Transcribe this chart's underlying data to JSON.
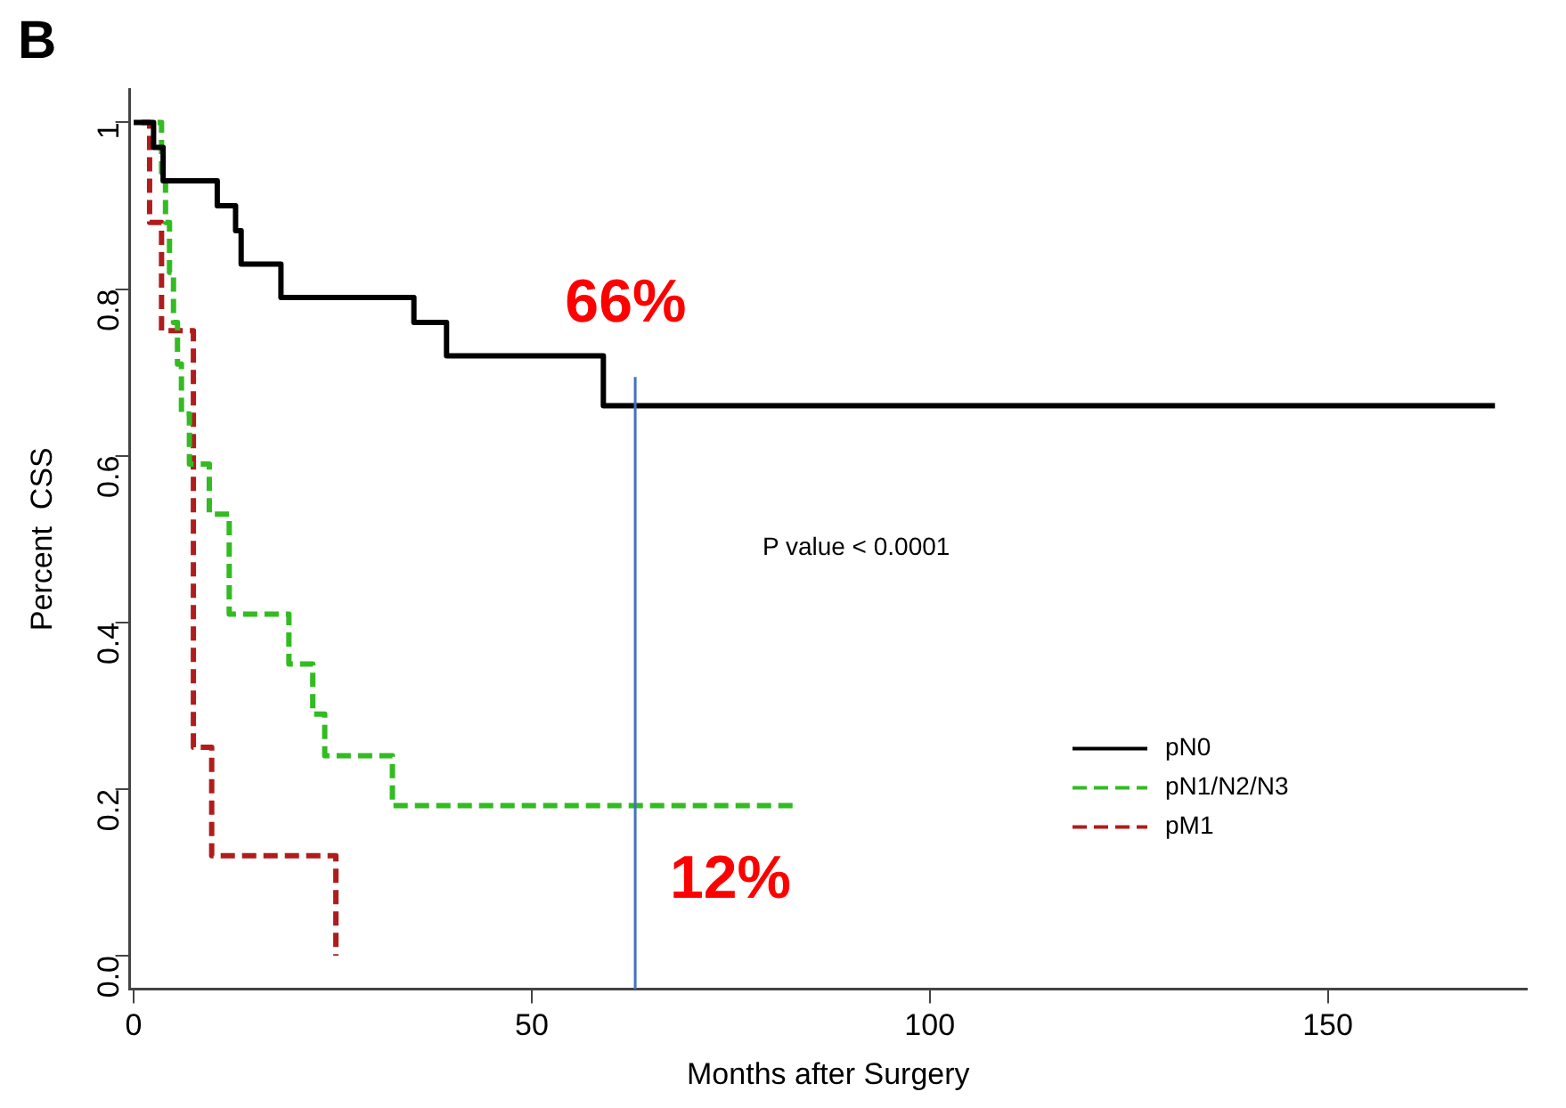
{
  "chart_data": {
    "type": "step",
    "title": "B",
    "xlabel": "Months after Surgery",
    "ylabel": "Percent  CSS",
    "xlim": [
      -0.5,
      175
    ],
    "xticks": [
      0,
      50,
      100,
      150
    ],
    "ylim": [
      -0.04,
      1.04
    ],
    "yticks": [
      {
        "value": 0,
        "label": "0.0"
      },
      {
        "value": 0.2,
        "label": "0.2"
      },
      {
        "value": 0.4,
        "label": "0.4"
      },
      {
        "value": 0.6,
        "label": "0.6"
      },
      {
        "value": 0.8,
        "label": "0.8"
      },
      1
    ],
    "grid": false,
    "legend": "bottom right",
    "series": [
      {
        "name": "pN0",
        "color": "#000000",
        "line_style": "solid",
        "x": [
          0,
          2.5,
          3.7,
          10.5,
          12.8,
          13.5,
          18.5,
          35.2,
          39.3,
          59,
          171
        ],
        "values": [
          1,
          0.97,
          0.93,
          0.9,
          0.87,
          0.83,
          0.79,
          0.76,
          0.72,
          0.66,
          0.66
        ]
      },
      {
        "name": "pN1/N2/N3",
        "color": "#33bb22",
        "line_style": "dashed",
        "x": [
          3,
          3.5,
          4,
          4.5,
          5,
          5.5,
          6,
          7,
          9.5,
          12,
          19.5,
          22.5,
          24,
          32.5,
          83
        ],
        "values": [
          1,
          0.94,
          0.88,
          0.82,
          0.76,
          0.71,
          0.65,
          0.59,
          0.53,
          0.41,
          0.35,
          0.29,
          0.24,
          0.18,
          0.18
        ]
      },
      {
        "name": "pM1",
        "color": "#b01c1c",
        "line_style": "dashed",
        "x": [
          1,
          2,
          3.5,
          7.5,
          9.8,
          25.4
        ],
        "values": [
          1,
          0.88,
          0.75,
          0.25,
          0.12,
          0
        ]
      }
    ],
    "ref_lines": [
      {
        "axis": "x",
        "value": 63,
        "color": "#4472c4"
      }
    ],
    "annotations": [
      "66%",
      "12%",
      "P value < 0.0001"
    ]
  }
}
